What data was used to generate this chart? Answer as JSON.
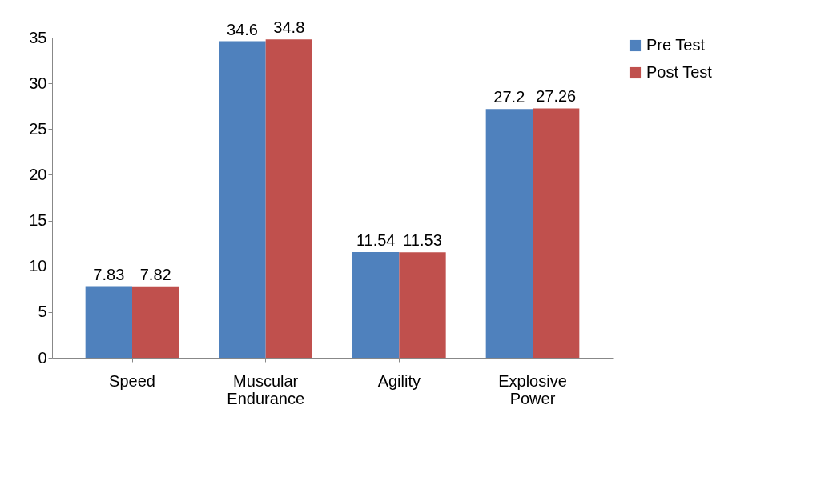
{
  "chart_data": {
    "type": "bar",
    "categories": [
      "Speed",
      "Muscular Endurance",
      "Agility",
      "Explosive Power"
    ],
    "series": [
      {
        "name": "Pre Test",
        "color": "#4f81bd",
        "values": [
          7.83,
          34.6,
          11.54,
          27.2
        ]
      },
      {
        "name": "Post Test",
        "color": "#c0504d",
        "values": [
          7.82,
          34.8,
          11.53,
          27.26
        ]
      }
    ],
    "ylim": [
      0,
      35
    ],
    "yticks": [
      0,
      5,
      10,
      15,
      20,
      25,
      30,
      35
    ],
    "grid": false,
    "legend": "right",
    "data_labels": true
  }
}
